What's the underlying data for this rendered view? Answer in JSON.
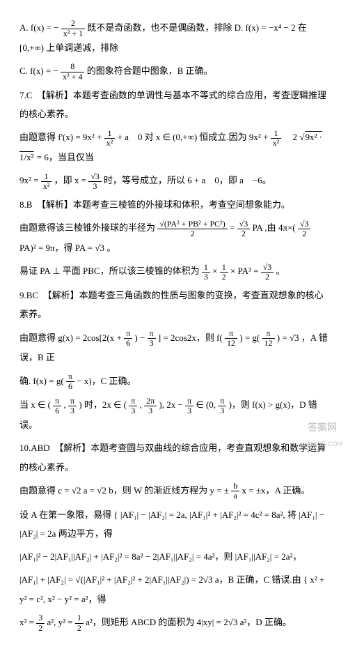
{
  "lineA": {
    "pre": "A.",
    "fx": "f(x) = −",
    "frac_n": "2",
    "frac_d": "x² + 1",
    "mid": " 既不是奇函数，也不是偶函数，排除 D. f(x) = −x⁴ − 2 在 [0,+∞) 上单调递减，排除"
  },
  "lineC": {
    "pre": "C.",
    "fx": "f(x) = −",
    "frac_n": "8",
    "frac_d": "x² + 4",
    "post": " 的图象符合题中图象，B 正确。"
  },
  "q7": {
    "head": "7.C　【解析】本题考查函数的单调性与基本不等式的综合应用，考查逻辑推理的核心素养。",
    "p1a": "由题意得 f'(x) = 9x² + ",
    "frac1_n": "1",
    "frac1_d": "x²",
    "p1b": " + a　0 对 x ∈ (0,+∞) 恒成立.因为 9x² + ",
    "frac2_n": "1",
    "frac2_d": "x²",
    "p1c": "　2",
    "sqrt": "9x² · 1/x²",
    "p1d": " = 6，当且仅当",
    "p2a": "9x² = ",
    "frac3_n": "1",
    "frac3_d": "x²",
    "p2b": "，即 x = ",
    "frac4_n": "√3",
    "frac4_d": "3",
    "p2c": " 时，等号成立，所以 6 + a　0，即 a　−6。"
  },
  "q8": {
    "head": "8.B　【解析】本题考查三棱锥的外接球和体积，考查空间想象能力。",
    "p1a": "由题意得该三棱锥外接球的半径为 ",
    "frac1_n": "√(PA² + PB² + PC²)",
    "frac1_d": "2",
    "p1b": " = ",
    "frac2_n": "√3",
    "frac2_d": "2",
    "p1c": " PA ,由 4π×(",
    "frac3_n": "√3",
    "frac3_d": "2",
    "p1d": " PA)² = 9π，得 PA = √3 。",
    "p2a": "易证 PA ⊥ 平面 PBC，所以该三棱锥的体积为 ",
    "frac4_n": "1",
    "frac4_d": "3",
    "p2b": " × ",
    "frac5_n": "1",
    "frac5_d": "2",
    "p2c": " × PA³ = ",
    "frac6_n": "√3",
    "frac6_d": "2",
    "p2d": " 。"
  },
  "q9": {
    "head": "9.BC　【解析】本题考查三角函数的性质与图象的变换，考查直观想象的核心素养。",
    "p1a": "由题意得 g(x) = 2cos[2(x + ",
    "frac1_n": "π",
    "frac1_d": "6",
    "p1b": ") − ",
    "frac2_n": "π",
    "frac2_d": "3",
    "p1c": "] = 2cos2x，则 f(",
    "frac3_n": "π",
    "frac3_d": "12",
    "p1d": ") = g(",
    "frac4_n": "π",
    "frac4_d": "12",
    "p1e": ") = √3 ，A 错误，B 正",
    "p2a": "确. f(x) = g(",
    "frac5_n": "π",
    "frac5_d": "6",
    "p2b": " − x)，C 正确。",
    "p3a": "当 x ∈ (",
    "frac6_n": "π",
    "frac6_d": "6",
    "p3b": ", ",
    "frac7_n": "π",
    "frac7_d": "3",
    "p3c": ") 时，2x ∈ (",
    "frac8_n": "π",
    "frac8_d": "3",
    "p3d": ", ",
    "frac9_n": "2π",
    "frac9_d": "3",
    "p3e": "), 2x − ",
    "frac10_n": "π",
    "frac10_d": "3",
    "p3f": " ∈ (0, ",
    "frac11_n": "π",
    "frac11_d": "3",
    "p3g": ")，则 f(x) > g(x)，D 错误。"
  },
  "q10": {
    "head": "10.ABD　【解析】本题考查圆与双曲线的综合应用，考查直观想象和数学运算的核心素养。",
    "p1a": "由题意得 c = √2 a = √2 b，则 W 的渐近线方程为 y = ± ",
    "frac1_n": "b",
    "frac1_d": "a",
    "p1b": " x = ±x，A 正确。",
    "p2a": "设 A 在第一象限，易得 { |AF₁| − |AF₂| = 2a,  |AF₁|² + |AF₂|² = 4c² = 8a²,  将 |AF₁| − |AF₂| = 2a 两边平方，得",
    "p3": "|AF₁|² − 2|AF₁||AF₂| + |AF₂|² = 8a² − 2|AF₁||AF₂| = 4a²，则 |AF₁||AF₂| = 2a²，",
    "p4a": "|AF₁| + |AF₂| = √(|AF₁|² + |AF₂|² + 2|AF₁||AF₂|) = 2√3 a，B 正确，C 错误.由 { x² + y² = c², x² − y² = a²，得",
    "p5a": "x² = ",
    "frac2_n": "3",
    "frac2_d": "2",
    "p5b": " a², y² = ",
    "frac3_n": "1",
    "frac3_d": "2",
    "p5c": " a²，则矩形 ABCD 的面积为 4|xy| = 2√3 a²，D 正确。"
  },
  "watermark": {
    "main": "答案网",
    "sub": "MXQE.COM"
  }
}
